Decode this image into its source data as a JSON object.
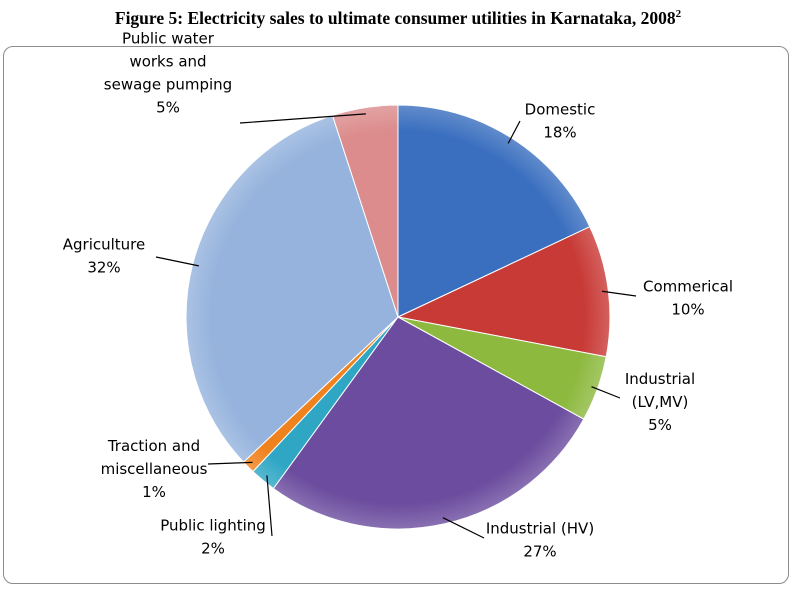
{
  "title": "Figure 5: Electricity sales to ultimate consumer utilities in Karnataka, 2008",
  "title_sup": "2",
  "chart_data": {
    "type": "pie",
    "title": "Figure 5: Electricity sales to ultimate consumer utilities in Karnataka, 2008",
    "slices": [
      {
        "name": "Domestic",
        "label": [
          "Domestic",
          "18%"
        ],
        "value": 18,
        "color": "#3a6fbf"
      },
      {
        "name": "Commerical",
        "label": [
          "Commerical",
          "10%"
        ],
        "value": 10,
        "color": "#c83a36"
      },
      {
        "name": "Industrial (LV,MV)",
        "label": [
          "Industrial",
          "(LV,MV)",
          "5%"
        ],
        "value": 5,
        "color": "#8cb93e"
      },
      {
        "name": "Industrial (HV)",
        "label": [
          "Industrial (HV)",
          "27%"
        ],
        "value": 27,
        "color": "#6b4c9e"
      },
      {
        "name": "Public lighting",
        "label": [
          "Public lighting",
          "2%"
        ],
        "value": 2,
        "color": "#2ea6c4"
      },
      {
        "name": "Traction and miscellaneous",
        "label": [
          "Traction and",
          "miscellaneous",
          "1%"
        ],
        "value": 1,
        "color": "#f0821e"
      },
      {
        "name": "Agriculture",
        "label": [
          "Agriculture",
          "32%"
        ],
        "value": 32,
        "color": "#95b3dd"
      },
      {
        "name": "Public water works and sewage pumping",
        "label": [
          "Public water",
          "works and",
          "sewage pumping",
          "5%"
        ],
        "value": 5,
        "color": "#dc8c8c"
      }
    ],
    "legend": "none",
    "data_labels": "outside-with-leaders"
  }
}
